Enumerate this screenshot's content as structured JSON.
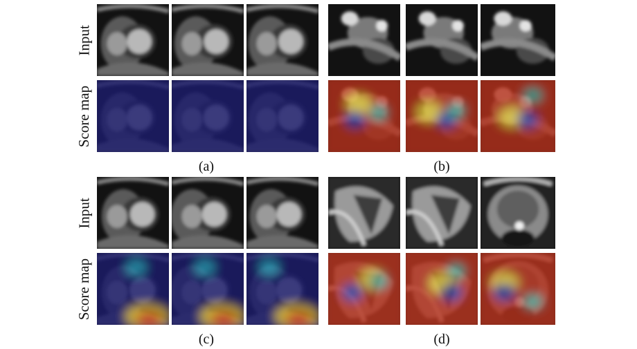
{
  "figure": {
    "row_labels": {
      "input": "Input",
      "score_map": "Score map"
    },
    "panels": [
      {
        "caption": "(a)",
        "input_images": [
          "cardiac-short-axis-mri",
          "cardiac-short-axis-mri",
          "cardiac-short-axis-mri"
        ],
        "score_maps": [
          "low-activation-heatmap",
          "low-activation-heatmap",
          "low-activation-heatmap"
        ]
      },
      {
        "caption": "(b)",
        "input_images": [
          "cardiac-mri-artifact",
          "cardiac-mri-artifact",
          "cardiac-mri-artifact"
        ],
        "score_maps": [
          "high-activation-heatmap",
          "high-activation-heatmap",
          "high-activation-heatmap"
        ]
      },
      {
        "caption": "(c)",
        "input_images": [
          "cardiac-short-axis-mri",
          "cardiac-short-axis-mri",
          "cardiac-short-axis-mri"
        ],
        "score_maps": [
          "partial-activation-heatmap",
          "partial-activation-heatmap",
          "partial-activation-heatmap"
        ]
      },
      {
        "caption": "(d)",
        "input_images": [
          "cardiac-long-axis-mri",
          "cardiac-long-axis-mri",
          "prostate-mri"
        ],
        "score_maps": [
          "high-activation-heatmap",
          "high-activation-heatmap",
          "high-activation-heatmap"
        ]
      }
    ],
    "colors": {
      "background": "#ffffff",
      "heat_low": "#1a1f6e",
      "heat_high": "#d4351c"
    }
  }
}
